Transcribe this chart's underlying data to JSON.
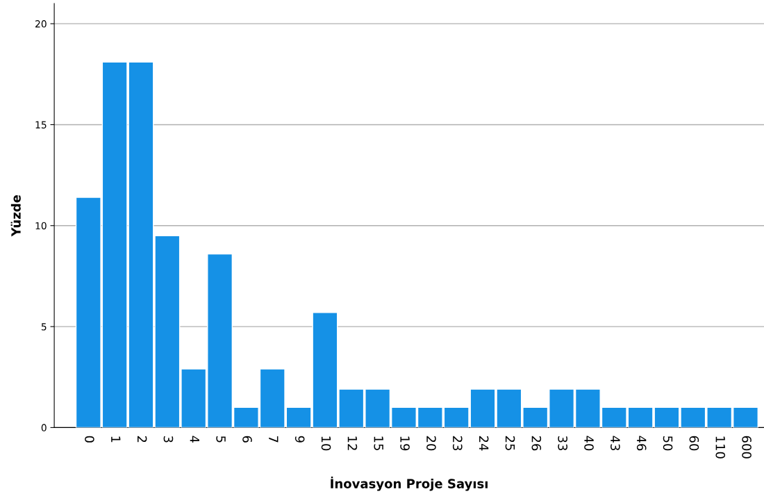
{
  "chart_data": {
    "type": "bar",
    "xlabel": "İnovasyon Proje Sayısı",
    "ylabel": "Yüzde",
    "categories": [
      "0",
      "1",
      "2",
      "3",
      "4",
      "5",
      "6",
      "7",
      "9",
      "10",
      "12",
      "15",
      "19",
      "20",
      "23",
      "24",
      "25",
      "26",
      "33",
      "40",
      "43",
      "46",
      "50",
      "60",
      "110",
      "600"
    ],
    "values": [
      11.4,
      18.1,
      18.1,
      9.5,
      2.9,
      8.6,
      1.0,
      2.9,
      1.0,
      5.7,
      1.9,
      1.9,
      1.0,
      1.0,
      1.0,
      1.9,
      1.9,
      1.0,
      1.9,
      1.9,
      1.0,
      1.0,
      1.0,
      1.0,
      1.0,
      1.0
    ],
    "color": "#1591e6",
    "ylim": [
      0,
      21
    ],
    "yticks": [
      0,
      5,
      10,
      15,
      20
    ],
    "grid": "y"
  }
}
